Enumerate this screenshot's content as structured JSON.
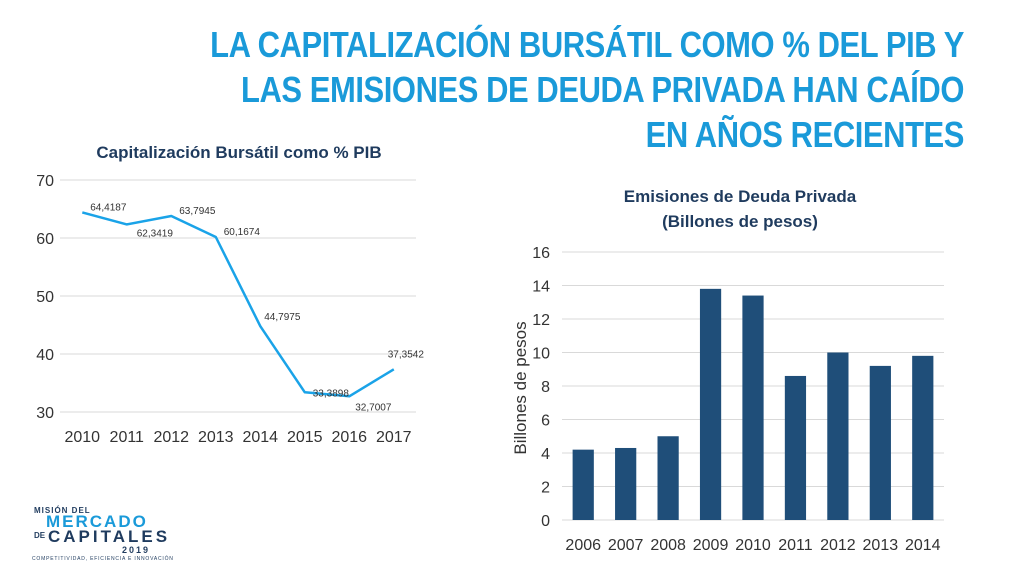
{
  "slide": {
    "title_lines": [
      "LA CAPITALIZACIÓN BURSÁTIL COMO % DEL PIB Y",
      "LAS EMISIONES DE DEUDA PRIVADA HAN CAÍDO",
      "EN AÑOS RECIENTES"
    ]
  },
  "logo": {
    "line1": "MISIÓN DEL",
    "line2": "MERCADO",
    "line3": "DE",
    "line4": "CAPITALES",
    "year": "2019",
    "tagline": "COMPETITIVIDAD, EFICIENCIA E INNOVACIÓN"
  },
  "colors": {
    "title": "#1a9ad9",
    "line_series": "#1aa3e8",
    "bar_fill": "#1f4e79",
    "grid": "#d9d9d9"
  },
  "chart_data": [
    {
      "type": "line",
      "title": "Capitalización Bursátil como % PIB",
      "categories": [
        "2010",
        "2011",
        "2012",
        "2013",
        "2014",
        "2015",
        "2016",
        "2017"
      ],
      "values": [
        64.4187,
        62.3419,
        63.7945,
        60.1674,
        44.7975,
        33.3898,
        32.7007,
        37.3542
      ],
      "data_labels": [
        "64,4187",
        "62,3419",
        "63,7945",
        "60,1674",
        "44,7975",
        "33,3898",
        "32,7007",
        "37,3542"
      ],
      "ylim": [
        30,
        70
      ],
      "yticks": [
        "30",
        "40",
        "50",
        "60",
        "70"
      ],
      "xlabel": "",
      "ylabel": "",
      "grid": true
    },
    {
      "type": "bar",
      "title_lines": [
        "Emisiones de Deuda Privada",
        "(Billones de pesos)"
      ],
      "categories": [
        "2006",
        "2007",
        "2008",
        "2009",
        "2010",
        "2011",
        "2012",
        "2013",
        "2014"
      ],
      "values": [
        4.2,
        4.3,
        5.0,
        13.8,
        13.4,
        8.6,
        10.0,
        9.2,
        9.8
      ],
      "ylim": [
        0,
        16
      ],
      "yticks": [
        "0",
        "2",
        "4",
        "6",
        "8",
        "10",
        "12",
        "14",
        "16"
      ],
      "xlabel": "",
      "ylabel": "Billones de pesos",
      "grid": true
    }
  ]
}
